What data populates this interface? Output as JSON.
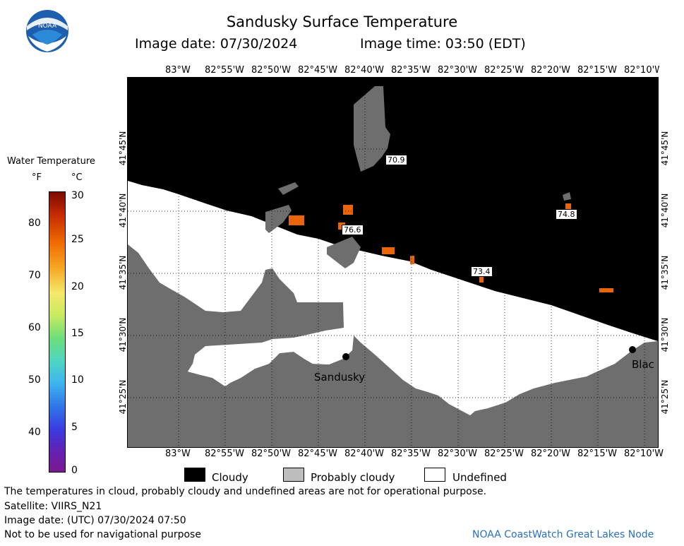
{
  "title": "Sandusky Surface Temperature",
  "image_date_label": "Image date: 07/30/2024",
  "image_time_label": "Image time: 03:50 (EDT)",
  "logo_text": "NOAA",
  "colorbar": {
    "title": "Water Temperature",
    "unit_f": "°F",
    "unit_c": "°C",
    "f_ticks": [
      "80",
      "70",
      "60",
      "50",
      "40"
    ],
    "c_ticks": [
      "30",
      "25",
      "20",
      "15",
      "10",
      "5",
      "0"
    ]
  },
  "axes": {
    "lon_labels": [
      "83°W",
      "82°55'W",
      "82°50'W",
      "82°45'W",
      "82°40'W",
      "82°35'W",
      "82°30'W",
      "82°25'W",
      "82°20'W",
      "82°15'W",
      "82°10'W"
    ],
    "lat_labels": [
      "41°45'N",
      "41°40'N",
      "41°35'N",
      "41°30'N",
      "41°25'N"
    ]
  },
  "data_labels": [
    "70.9",
    "76.6",
    "73.4",
    "74.8"
  ],
  "places": [
    "Sandusky",
    "Blac"
  ],
  "legend": {
    "cloudy": "Cloudy",
    "probably_cloudy": "Probably cloudy",
    "undefined": "Undefined"
  },
  "colors": {
    "cloudy": "#000000",
    "probably_cloudy": "#bdbdbd",
    "land": "#6e6e6e",
    "undefined": "#ffffff",
    "warm_water": "#e8650a",
    "credit": "#2a6fbf"
  },
  "notes": {
    "disclaimer": "The temperatures in cloud, probably cloudy and undefined areas are not for operational purpose.",
    "satellite": "Satellite: VIIRS_N21",
    "utc_date": "Image date: (UTC) 07/30/2024  07:50",
    "nav_warning": "Not to be used for navigational purpose",
    "credit": "NOAA CoastWatch Great Lakes Node"
  }
}
